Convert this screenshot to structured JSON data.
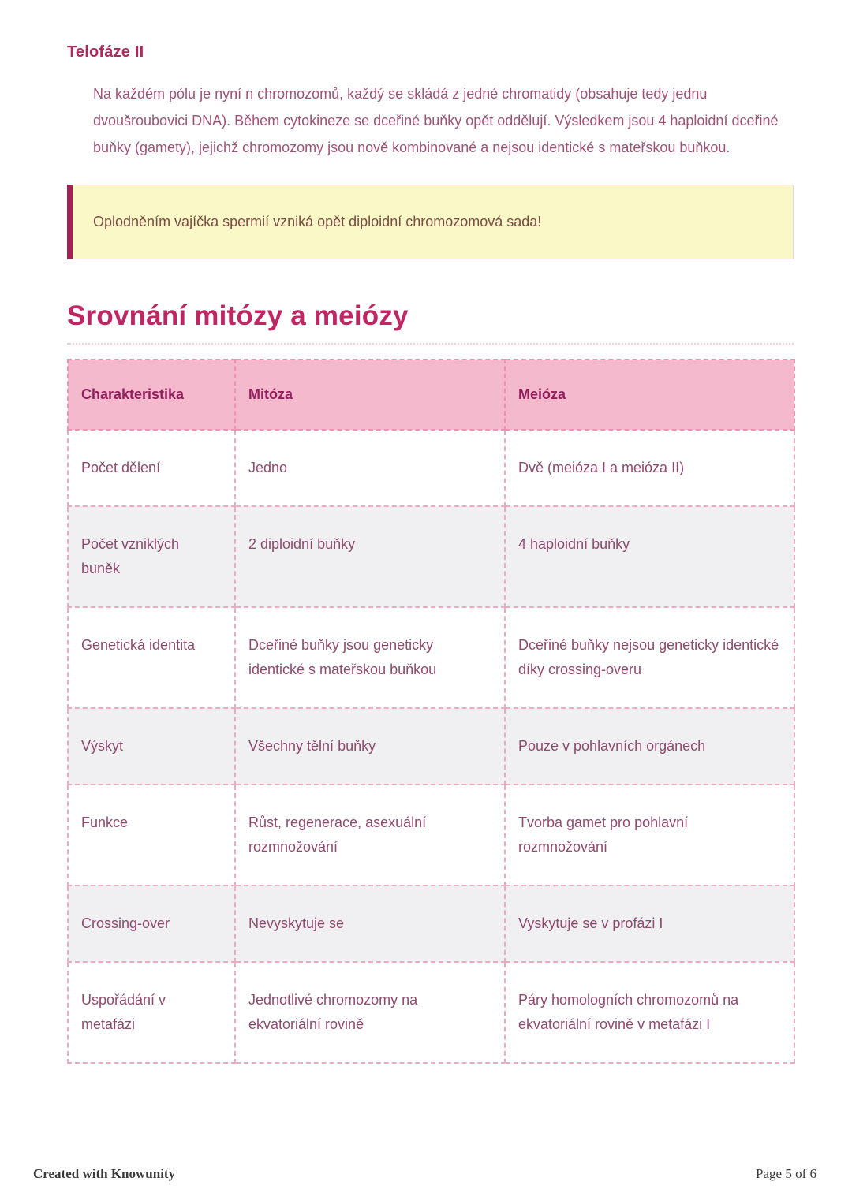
{
  "page": {
    "section_heading": "Telofáze II",
    "paragraph": "Na každém pólu je nyní n chromozomů, každý se skládá z jedné chromatidy (obsahuje tedy jednu dvoušroubovici DNA). Během cytokineze se dceřiné buňky opět oddělují. Výsledkem jsou 4 haploidní dceřiné buňky (gamety), jejichž chromozomy jsou nově kombinované a nejsou identické s mateřskou buňkou.",
    "callout": "Oplodněním vajíčka spermií vzniká opět diploidní chromozomová sada!",
    "main_heading": "Srovnání mitózy a meiózy"
  },
  "table": {
    "headers": [
      "Charakteristika",
      "Mitóza",
      "Meióza"
    ],
    "rows": [
      [
        "Počet dělení",
        "Jedno",
        "Dvě (meióza I a meióza II)"
      ],
      [
        "Počet vzniklých buněk",
        "2 diploidní buňky",
        "4 haploidní buňky"
      ],
      [
        "Genetická identita",
        "Dceřiné buňky jsou geneticky identické s mateřskou buňkou",
        "Dceřiné buňky nejsou geneticky identické díky crossing-overu"
      ],
      [
        "Výskyt",
        "Všechny tělní buňky",
        "Pouze v pohlavních orgánech"
      ],
      [
        "Funkce",
        "Růst, regenerace, asexuální rozmnožování",
        "Tvorba gamet pro pohlavní rozmnožování"
      ],
      [
        "Crossing-over",
        "Nevyskytuje se",
        "Vyskytuje se v profázi I"
      ],
      [
        "Uspořádání v metafázi",
        "Jednotlivé chromozomy na ekvatoriální rovině",
        "Páry homologních chromozomů na ekvatoriální rovině v metafázi I"
      ]
    ]
  },
  "footer": {
    "left": "Created with Knowunity",
    "right": "Page 5 of 6"
  },
  "colors": {
    "accent_crimson": "#bf2764",
    "section_heading": "#b02a5e",
    "body_text": "#9d5377",
    "callout_background": "#fbf8c7",
    "callout_border": "#a32155",
    "callout_text": "#7d4b44",
    "table_header_background": "#f5b9cd",
    "table_header_text": "#931f5e",
    "table_cell_text": "#8f4a6e",
    "table_dashed_border": "#edaac1",
    "table_alt_row_background": "#f0f0f2",
    "footer_text": "#3b3b3b"
  }
}
